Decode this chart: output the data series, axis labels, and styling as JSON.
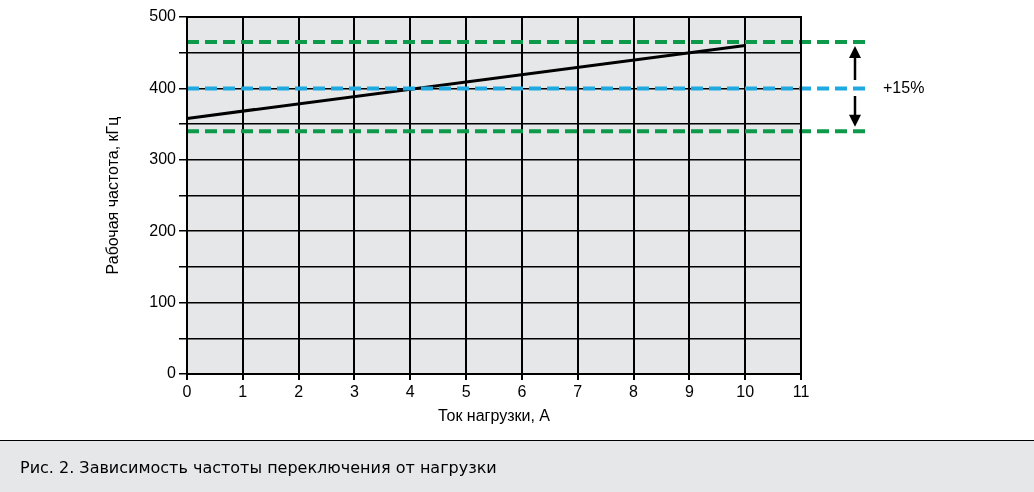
{
  "chart_data": {
    "type": "line",
    "xlabel": "Ток нагрузки, А",
    "ylabel": "Рабочая частота, кГц",
    "x": [
      0,
      10
    ],
    "series": [
      {
        "color": "#000000",
        "values": [
          358,
          460
        ]
      }
    ],
    "xlim": [
      0,
      11
    ],
    "xticks": [
      0,
      1,
      2,
      3,
      4,
      5,
      6,
      7,
      8,
      9,
      10,
      11
    ],
    "ylim": [
      0,
      500
    ],
    "yticks": [
      0,
      {
        "value": 50,
        "label": null
      },
      100,
      {
        "value": 150,
        "label": null
      },
      200,
      {
        "value": 250,
        "label": null
      },
      300,
      {
        "value": 350,
        "label": null
      },
      400,
      {
        "value": 450,
        "label": null
      },
      500
    ],
    "grid": true,
    "legend": false,
    "marker": "none",
    "line_style": "solid",
    "ref_lines": [
      {
        "axis": "y",
        "value": 465,
        "color": "#0e9a4b",
        "line_style": "dashed"
      },
      {
        "axis": "y",
        "value": 400,
        "color": "#1fa9e1",
        "line_style": "dashed"
      },
      {
        "axis": "y",
        "value": 340,
        "color": "#0e9a4b",
        "line_style": "dashed"
      }
    ],
    "annotations": [
      "+15%",
      "Рис. 2. Зависимость частоты переключения от нагрузки"
    ]
  }
}
